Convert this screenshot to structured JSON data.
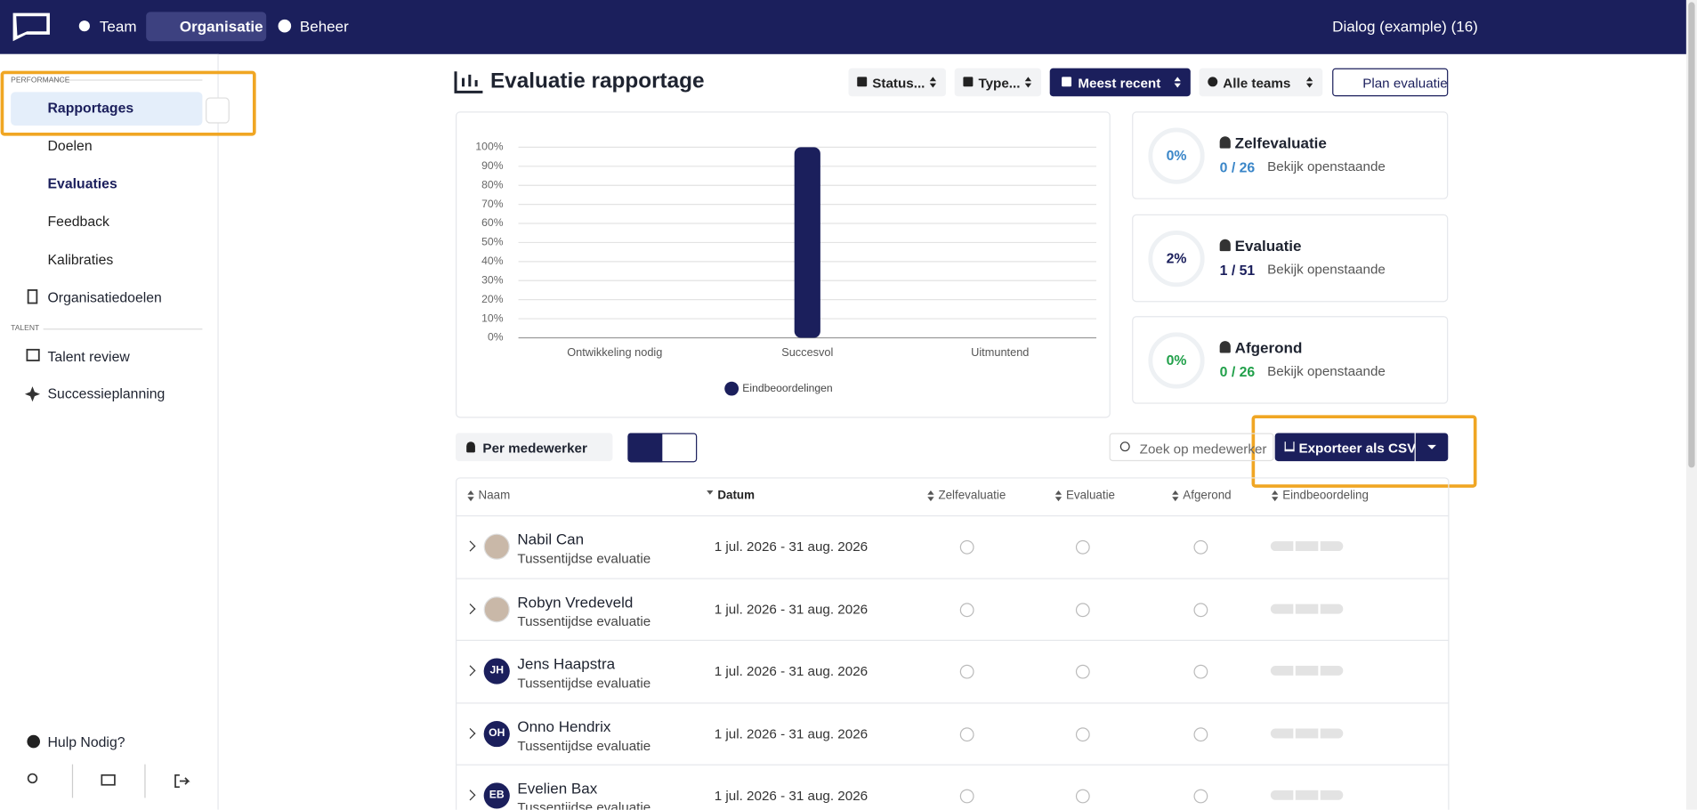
{
  "nav": {
    "items": [
      "Team",
      "Organisatie",
      "Beheer"
    ],
    "account": "Dialog (example) (16)"
  },
  "sidebar": {
    "performance_label": "PERFORMANCE",
    "reports": "Rapportages",
    "report_items": [
      "Doelen",
      "Evaluaties",
      "Feedback",
      "Kalibraties"
    ],
    "org_goals": "Organisatiedoelen",
    "talent_label": "TALENT",
    "talent_items": [
      "Talent review",
      "Successieplanning"
    ],
    "help": "Hulp Nodig?"
  },
  "page": {
    "title": "Evaluatie rapportage",
    "filters": [
      "Status...",
      "Type...",
      "Meest recent",
      "Alle teams"
    ],
    "plan_button": "Plan evaluatie"
  },
  "chart_data": {
    "type": "bar",
    "categories": [
      "Ontwikkeling nodig",
      "Succesvol",
      "Uitmuntend"
    ],
    "series": [
      {
        "name": "Eindbeoordelingen",
        "color": "#1b1f5c",
        "values": [
          0,
          100,
          0
        ]
      }
    ],
    "ylim": [
      0,
      100
    ],
    "yticks": [
      {
        "value": 0,
        "label": "0%"
      },
      {
        "value": 10,
        "label": "10%"
      },
      {
        "value": 20,
        "label": "20%"
      },
      {
        "value": 30,
        "label": "30%"
      },
      {
        "value": 40,
        "label": "40%"
      },
      {
        "value": 50,
        "label": "50%"
      },
      {
        "value": 60,
        "label": "60%"
      },
      {
        "value": 70,
        "label": "70%"
      },
      {
        "value": 80,
        "label": "80%"
      },
      {
        "value": 90,
        "label": "90%"
      },
      {
        "value": 100,
        "label": "100%"
      }
    ],
    "grid": true,
    "legend": "bottom"
  },
  "stats": [
    {
      "percent": "0%",
      "title": "Zelfevaluatie",
      "count": "0 / 26",
      "link": "Bekijk openstaande",
      "color": "#3a86c8"
    },
    {
      "percent": "2%",
      "title": "Evaluatie",
      "count": "1 / 51",
      "link": "Bekijk openstaande",
      "color": "#1b1f5c"
    },
    {
      "percent": "0%",
      "title": "Afgerond",
      "count": "0 / 26",
      "link": "Bekijk openstaande",
      "color": "#21a04a"
    }
  ],
  "toolbar": {
    "group_by": "Per medewerker",
    "search_placeholder": "Zoek op medewerker",
    "export": "Exporteer als CSV"
  },
  "table": {
    "columns": [
      "Naam",
      "Datum",
      "Zelfevaluatie",
      "Evaluatie",
      "Afgerond",
      "Eindbeoordeling"
    ],
    "rows": [
      {
        "name": "Nabil Can",
        "type": "Tussentijdse evaluatie",
        "date": "1 jul. 2026 - 31 aug. 2026"
      },
      {
        "name": "Robyn Vredeveld",
        "type": "Tussentijdse evaluatie",
        "date": "1 jul. 2026 - 31 aug. 2026"
      },
      {
        "name": "Jens Haapstra",
        "initials": "JH",
        "type": "Tussentijdse evaluatie",
        "date": "1 jul. 2026 - 31 aug. 2026"
      },
      {
        "name": "Onno Hendrix",
        "initials": "OH",
        "type": "Tussentijdse evaluatie",
        "date": "1 jul. 2026 - 31 aug. 2026"
      },
      {
        "name": "Evelien Bax",
        "initials": "EB",
        "type": "Tussentijdse evaluatie",
        "date": "1 jul. 2026 - 31 aug. 2026"
      }
    ]
  }
}
